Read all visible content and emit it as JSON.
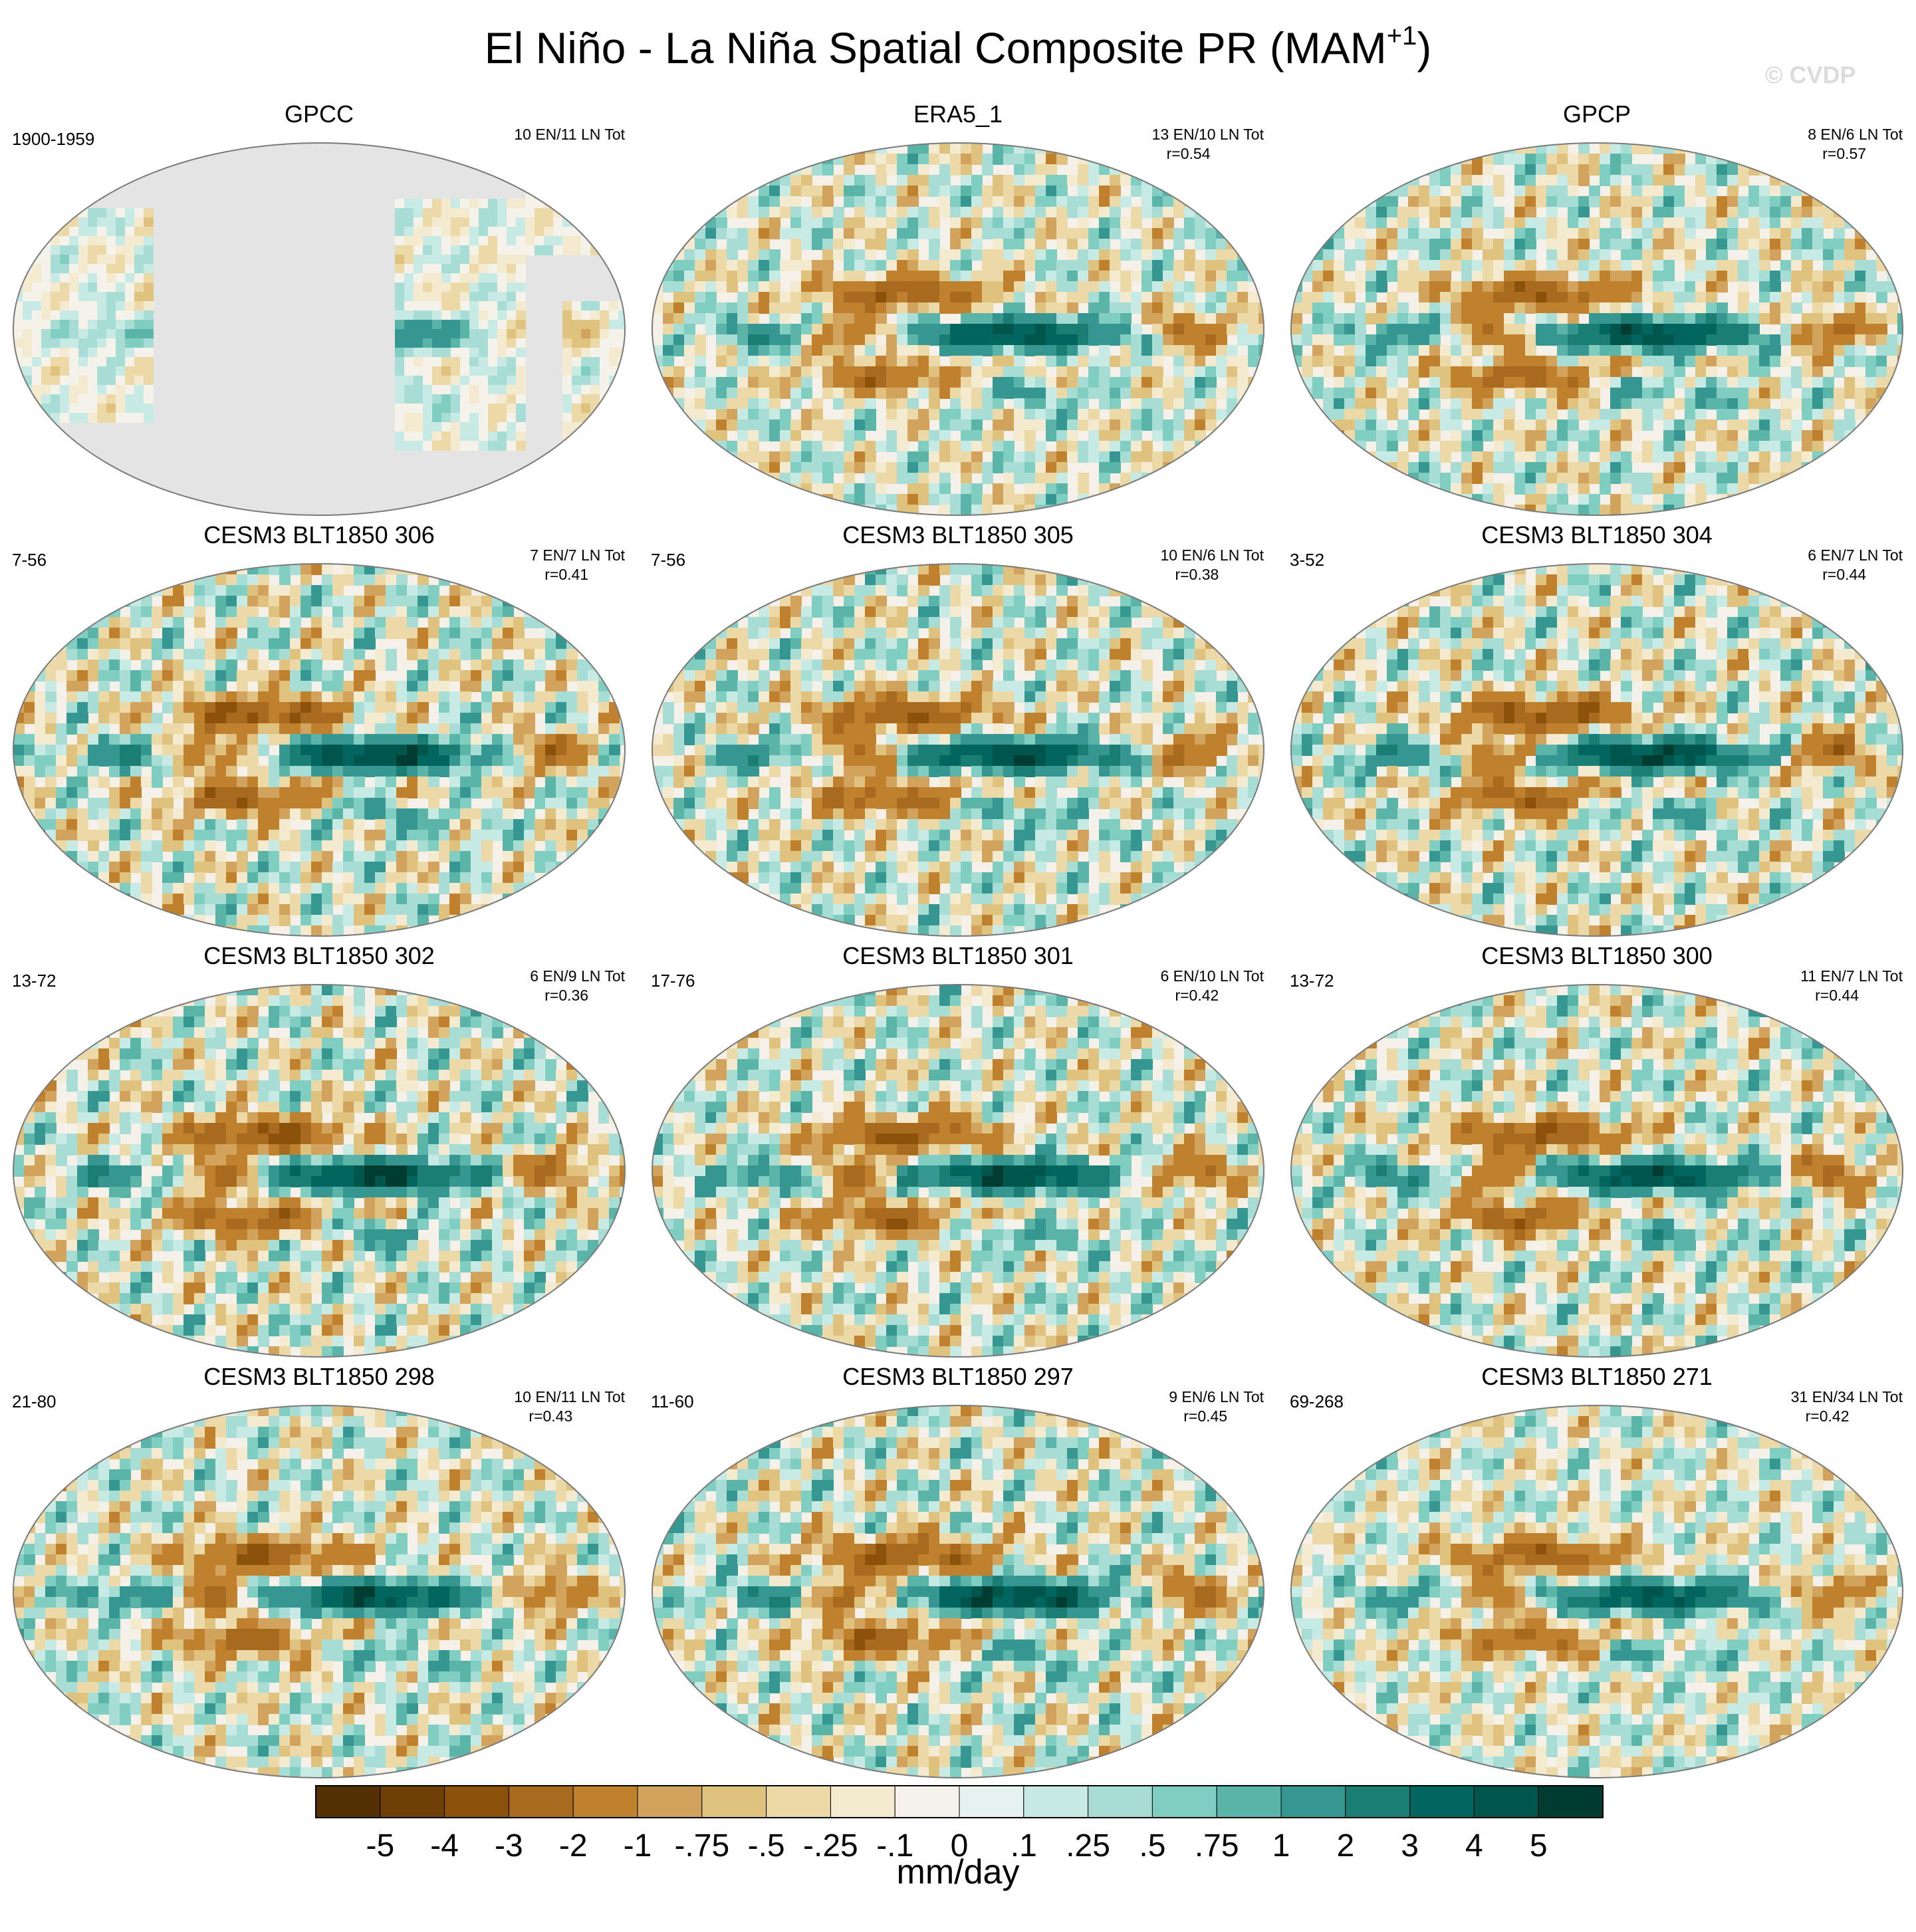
{
  "title": "El Niño - La Niña Spatial Composite PR (MAM",
  "title_superscript": "+1",
  "title_close": ")",
  "watermark": "© CVDP",
  "colors": {
    "brown_max": "#543005",
    "teal_max": "#003c30",
    "neutral": "#f5f0e8",
    "missing": "#e4e4e4"
  },
  "panels": [
    {
      "name": "GPCC",
      "period": "1900-1959",
      "counts": "10 EN/11 LN Tot",
      "r": "",
      "kind": "land",
      "amp": 0.5
    },
    {
      "name": "ERA5_1",
      "period": "",
      "counts": "13 EN/10 LN Tot",
      "r": "r=0.54",
      "kind": "obs",
      "amp": 0.85
    },
    {
      "name": "GPCP",
      "period": "",
      "counts": "8 EN/6 LN Tot",
      "r": "r=0.57",
      "kind": "obs",
      "amp": 0.9
    },
    {
      "name": "CESM3 BLT1850 306",
      "period": "7-56",
      "counts": "7 EN/7 LN Tot",
      "r": "r=0.41",
      "kind": "model",
      "amp": 1.0
    },
    {
      "name": "CESM3 BLT1850 305",
      "period": "7-56",
      "counts": "10 EN/6 LN Tot",
      "r": "r=0.38",
      "kind": "model",
      "amp": 0.95
    },
    {
      "name": "CESM3 BLT1850 304",
      "period": "3-52",
      "counts": "6 EN/7 LN Tot",
      "r": "r=0.44",
      "kind": "model",
      "amp": 1.0
    },
    {
      "name": "CESM3 BLT1850 302",
      "period": "13-72",
      "counts": "6 EN/9 LN Tot",
      "r": "r=0.36",
      "kind": "model",
      "amp": 1.0
    },
    {
      "name": "CESM3 BLT1850 301",
      "period": "17-76",
      "counts": "6 EN/10 LN Tot",
      "r": "r=0.42",
      "kind": "model",
      "amp": 0.95
    },
    {
      "name": "CESM3 BLT1850 300",
      "period": "13-72",
      "counts": "11 EN/7 LN Tot",
      "r": "r=0.44",
      "kind": "model",
      "amp": 0.95
    },
    {
      "name": "CESM3 BLT1850 298",
      "period": "21-80",
      "counts": "10 EN/11 LN Tot",
      "r": "r=0.43",
      "kind": "model",
      "amp": 0.9
    },
    {
      "name": "CESM3 BLT1850 297",
      "period": "11-60",
      "counts": "9 EN/6 LN Tot",
      "r": "r=0.45",
      "kind": "model",
      "amp": 1.0
    },
    {
      "name": "CESM3 BLT1850 271",
      "period": "69-268",
      "counts": "31 EN/34 LN Tot",
      "r": "r=0.42",
      "kind": "model",
      "amp": 0.8
    }
  ],
  "colorbar": {
    "labels": [
      "-5",
      "-4",
      "-3",
      "-2",
      "-1",
      "-.75",
      "-.5",
      "-.25",
      "-.1",
      "0",
      ".1",
      ".25",
      ".5",
      ".75",
      "1",
      "2",
      "3",
      "4",
      "5"
    ],
    "colors": [
      "#543005",
      "#6e4007",
      "#8c510a",
      "#a86a1f",
      "#bf812d",
      "#d2a35c",
      "#dfc27d",
      "#ecd9a8",
      "#f4ead0",
      "#f5f2ea",
      "#e5f2f0",
      "#c7eae5",
      "#a7ddd4",
      "#80cdc1",
      "#5ab4a8",
      "#35978f",
      "#1b7e74",
      "#01665e",
      "#00564c",
      "#003c30"
    ],
    "units": "mm/day"
  }
}
